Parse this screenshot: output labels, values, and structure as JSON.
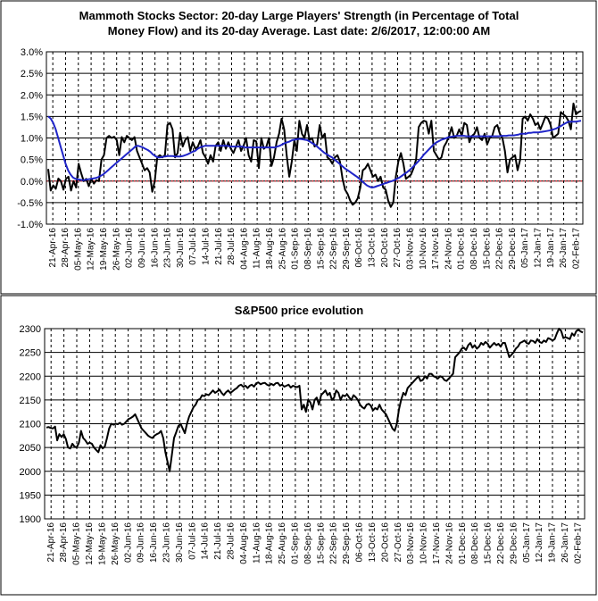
{
  "chart_data": [
    {
      "type": "line",
      "title_lines": [
        "Mammoth Stocks Sector: 20-day Large Players' Strength (in Percentage of Total",
        "Money Flow) and its 20-day Average. Last date: 2/6/2017, 12:00:00 AM"
      ],
      "ylim": [
        -1.0,
        3.0
      ],
      "yticks": [
        -1.0,
        -0.5,
        0.0,
        0.5,
        1.0,
        1.5,
        2.0,
        2.5,
        3.0
      ],
      "ytick_labels": [
        "-1.0%",
        "-0.5%",
        "0.0%",
        "0.5%",
        "1.0%",
        "1.5%",
        "2.0%",
        "2.5%",
        "3.0%"
      ],
      "x_labels": [
        "21-Apr-16",
        "28-Apr-16",
        "05-May-16",
        "12-May-16",
        "19-May-16",
        "26-May-16",
        "02-Jun-16",
        "09-Jun-16",
        "16-Jun-16",
        "23-Jun-16",
        "30-Jun-16",
        "07-Jul-16",
        "14-Jul-16",
        "21-Jul-16",
        "28-Jul-16",
        "04-Aug-16",
        "11-Aug-16",
        "18-Aug-16",
        "25-Aug-16",
        "01-Sep-16",
        "08-Sep-16",
        "15-Sep-16",
        "22-Sep-16",
        "29-Sep-16",
        "06-Oct-16",
        "13-Oct-16",
        "20-Oct-16",
        "27-Oct-16",
        "03-Nov-16",
        "10-Nov-16",
        "17-Nov-16",
        "24-Nov-16",
        "01-Dec-16",
        "08-Dec-16",
        "15-Dec-16",
        "22-Dec-16",
        "29-Dec-16",
        "05-Jan-17",
        "12-Jan-17",
        "19-Jan-17",
        "26-Jan-17",
        "02-Feb-17"
      ],
      "grid": true,
      "reference_line": {
        "y": 0.0,
        "color": "#e0303a",
        "style": "dotted"
      },
      "series": [
        {
          "color": "#000000",
          "values": [
            0.28,
            -0.22,
            -0.1,
            -0.18,
            0.06,
            0.0,
            -0.2,
            0.05,
            0.1,
            -0.22,
            0.0,
            -0.15,
            0.4,
            0.18,
            0.0,
            0.05,
            -0.12,
            0.05,
            -0.06,
            0.02,
            0.0,
            0.5,
            0.6,
            1.0,
            1.05,
            1.0,
            1.03,
            0.95,
            0.6,
            1.02,
            0.9,
            1.05,
            1.0,
            0.95,
            1.02,
            0.7,
            0.55,
            0.4,
            0.25,
            0.3,
            0.2,
            -0.25,
            0.0,
            0.55,
            0.6,
            0.55,
            0.6,
            1.3,
            1.35,
            1.2,
            0.55,
            0.65,
            1.12,
            0.8,
            0.95,
            1.02,
            0.7,
            0.9,
            0.75,
            0.8,
            0.95,
            0.65,
            0.55,
            0.4,
            0.6,
            0.45,
            0.82,
            0.9,
            0.7,
            0.95,
            0.75,
            0.9,
            0.75,
            0.65,
            0.8,
            0.95,
            0.7,
            0.82,
            1.0,
            0.6,
            0.45,
            0.95,
            0.92,
            0.3,
            1.0,
            0.75,
            0.8,
            1.0,
            0.35,
            0.55,
            0.9,
            1.1,
            1.45,
            1.2,
            0.6,
            0.1,
            0.45,
            0.95,
            0.7,
            1.4,
            1.1,
            1.0,
            1.3,
            0.95,
            1.0,
            0.8,
            0.85,
            1.3,
            1.0,
            1.1,
            0.55,
            0.5,
            0.4,
            0.55,
            0.6,
            0.45,
            0.05,
            -0.2,
            -0.3,
            -0.45,
            -0.55,
            -0.5,
            -0.4,
            -0.15,
            0.25,
            0.3,
            0.4,
            0.25,
            0.1,
            0.15,
            0.0,
            0.1,
            -0.15,
            -0.2,
            -0.45,
            -0.6,
            -0.5,
            0.1,
            0.45,
            0.65,
            0.4,
            0.05,
            0.1,
            0.15,
            0.3,
            0.5,
            1.25,
            1.35,
            1.4,
            1.38,
            1.1,
            1.4,
            0.7,
            0.6,
            0.5,
            0.55,
            0.8,
            0.9,
            1.05,
            1.25,
            1.0,
            1.05,
            1.2,
            1.05,
            1.35,
            1.3,
            0.9,
            1.05,
            1.1,
            1.25,
            1.0,
            0.95,
            1.1,
            0.85,
            1.0,
            1.05,
            1.25,
            1.3,
            1.1,
            1.0,
            0.7,
            0.2,
            0.5,
            0.55,
            0.6,
            0.25,
            0.5,
            1.45,
            1.5,
            1.4,
            1.55,
            1.45,
            1.3,
            1.35,
            1.2,
            1.35,
            1.5,
            1.45,
            1.3,
            1.0,
            1.05,
            1.1,
            1.6,
            1.55,
            1.5,
            1.4,
            1.2,
            1.8,
            1.55,
            1.6,
            1.63
          ]
        },
        {
          "color": "#1f24c8",
          "values": [
            1.5,
            1.45,
            1.35,
            1.2,
            1.0,
            0.8,
            0.6,
            0.4,
            0.25,
            0.15,
            0.08,
            0.05,
            0.04,
            0.03,
            0.02,
            0.03,
            0.04,
            0.05,
            0.06,
            0.07,
            0.09,
            0.12,
            0.15,
            0.2,
            0.25,
            0.3,
            0.35,
            0.4,
            0.45,
            0.5,
            0.55,
            0.6,
            0.65,
            0.7,
            0.75,
            0.8,
            0.82,
            0.8,
            0.78,
            0.75,
            0.72,
            0.68,
            0.62,
            0.58,
            0.55,
            0.55,
            0.56,
            0.57,
            0.58,
            0.58,
            0.58,
            0.57,
            0.57,
            0.57,
            0.58,
            0.6,
            0.62,
            0.65,
            0.68,
            0.7,
            0.75,
            0.78,
            0.8,
            0.82,
            0.82,
            0.82,
            0.82,
            0.82,
            0.82,
            0.82,
            0.82,
            0.82,
            0.82,
            0.8,
            0.8,
            0.8,
            0.8,
            0.8,
            0.8,
            0.78,
            0.78,
            0.78,
            0.78,
            0.78,
            0.78,
            0.78,
            0.78,
            0.78,
            0.78,
            0.78,
            0.78,
            0.78,
            0.8,
            0.82,
            0.85,
            0.88,
            0.9,
            0.92,
            0.95,
            0.96,
            0.97,
            0.98,
            0.97,
            0.96,
            0.95,
            0.92,
            0.88,
            0.85,
            0.8,
            0.75,
            0.7,
            0.65,
            0.62,
            0.58,
            0.55,
            0.5,
            0.45,
            0.4,
            0.35,
            0.3,
            0.26,
            0.22,
            0.18,
            0.14,
            0.1,
            0.05,
            0.0,
            -0.05,
            -0.1,
            -0.13,
            -0.15,
            -0.14,
            -0.12,
            -0.1,
            -0.08,
            -0.06,
            -0.04,
            -0.02,
            0.0,
            0.02,
            0.05,
            0.08,
            0.12,
            0.16,
            0.2,
            0.25,
            0.3,
            0.36,
            0.42,
            0.48,
            0.55,
            0.62,
            0.68,
            0.74,
            0.8,
            0.86,
            0.9,
            0.93,
            0.96,
            0.98,
            1.0,
            1.02,
            1.03,
            1.04,
            1.05,
            1.05,
            1.05,
            1.05,
            1.04,
            1.04,
            1.04,
            1.04,
            1.04,
            1.04,
            1.04,
            1.04,
            1.04,
            1.04,
            1.04,
            1.04,
            1.04,
            1.04,
            1.05,
            1.05,
            1.05,
            1.06,
            1.06,
            1.06,
            1.07,
            1.08,
            1.1,
            1.1,
            1.1,
            1.12,
            1.12,
            1.13,
            1.13,
            1.13,
            1.14,
            1.15,
            1.16,
            1.17,
            1.18,
            1.2,
            1.22,
            1.25,
            1.28,
            1.32,
            1.35,
            1.38,
            1.38,
            1.38,
            1.38,
            1.39,
            1.4
          ]
        }
      ]
    },
    {
      "type": "line",
      "title": "S&P500 price evolution",
      "ylim": [
        1900,
        2300
      ],
      "yticks": [
        1900,
        1950,
        2000,
        2050,
        2100,
        2150,
        2200,
        2250,
        2300
      ],
      "ytick_labels": [
        "1900",
        "1950",
        "2000",
        "2050",
        "2100",
        "2150",
        "2200",
        "2250",
        "2300"
      ],
      "x_labels": [
        "21-Apr-16",
        "28-Apr-16",
        "05-May-16",
        "12-May-16",
        "19-May-16",
        "26-May-16",
        "02-Jun-16",
        "09-Jun-16",
        "16-Jun-16",
        "23-Jun-16",
        "30-Jun-16",
        "07-Jul-16",
        "14-Jul-16",
        "21-Jul-16",
        "28-Jul-16",
        "04-Aug-16",
        "11-Aug-16",
        "18-Aug-16",
        "25-Aug-16",
        "01-Sep-16",
        "08-Sep-16",
        "15-Sep-16",
        "22-Sep-16",
        "29-Sep-16",
        "06-Oct-16",
        "13-Oct-16",
        "20-Oct-16",
        "27-Oct-16",
        "03-Nov-16",
        "10-Nov-16",
        "17-Nov-16",
        "24-Nov-16",
        "01-Dec-16",
        "08-Dec-16",
        "15-Dec-16",
        "22-Dec-16",
        "29-Dec-16",
        "05-Jan-17",
        "12-Jan-17",
        "19-Jan-17",
        "26-Jan-17",
        "02-Feb-17"
      ],
      "grid": true,
      "series": [
        {
          "color": "#000000",
          "values": [
            2092,
            2093,
            2091,
            2090,
            2094,
            2065,
            2078,
            2072,
            2078,
            2068,
            2050,
            2048,
            2058,
            2052,
            2050,
            2060,
            2085,
            2070,
            2065,
            2058,
            2060,
            2058,
            2050,
            2045,
            2040,
            2055,
            2048,
            2052,
            2070,
            2090,
            2100,
            2098,
            2100,
            2099,
            2102,
            2098,
            2100,
            2105,
            2110,
            2112,
            2115,
            2120,
            2110,
            2100,
            2090,
            2085,
            2080,
            2075,
            2072,
            2070,
            2075,
            2078,
            2080,
            2085,
            2070,
            2040,
            2020,
            2000,
            2035,
            2070,
            2082,
            2095,
            2100,
            2090,
            2080,
            2100,
            2115,
            2125,
            2135,
            2140,
            2150,
            2152,
            2160,
            2158,
            2162,
            2160,
            2165,
            2170,
            2165,
            2168,
            2172,
            2165,
            2160,
            2166,
            2170,
            2165,
            2168,
            2172,
            2175,
            2180,
            2182,
            2178,
            2180,
            2175,
            2180,
            2182,
            2178,
            2185,
            2187,
            2183,
            2185,
            2186,
            2182,
            2180,
            2184,
            2181,
            2185,
            2186,
            2180,
            2182,
            2178,
            2180,
            2182,
            2176,
            2180,
            2178,
            2177,
            2180,
            2130,
            2140,
            2125,
            2150,
            2145,
            2130,
            2150,
            2155,
            2140,
            2160,
            2165,
            2170,
            2160,
            2165,
            2150,
            2155,
            2170,
            2165,
            2150,
            2160,
            2158,
            2162,
            2155,
            2150,
            2160,
            2156,
            2150,
            2140,
            2135,
            2132,
            2140,
            2142,
            2138,
            2128,
            2133,
            2130,
            2140,
            2130,
            2125,
            2120,
            2110,
            2100,
            2090,
            2085,
            2100,
            2130,
            2150,
            2165,
            2160,
            2175,
            2180,
            2185,
            2190,
            2195,
            2200,
            2190,
            2192,
            2200,
            2195,
            2205,
            2205,
            2200,
            2198,
            2195,
            2200,
            2198,
            2192,
            2190,
            2195,
            2200,
            2205,
            2240,
            2245,
            2250,
            2258,
            2260,
            2255,
            2265,
            2270,
            2260,
            2265,
            2258,
            2262,
            2270,
            2266,
            2272,
            2268,
            2260,
            2265,
            2270,
            2265,
            2268,
            2262,
            2270,
            2270,
            2255,
            2240,
            2245,
            2250,
            2258,
            2262,
            2270,
            2272,
            2275,
            2270,
            2268,
            2275,
            2274,
            2270,
            2278,
            2272,
            2270,
            2275,
            2272,
            2280,
            2278,
            2275,
            2278,
            2290,
            2300,
            2295,
            2280,
            2282,
            2280,
            2278,
            2290,
            2285,
            2295,
            2298,
            2294,
            2292
          ]
        }
      ]
    }
  ]
}
